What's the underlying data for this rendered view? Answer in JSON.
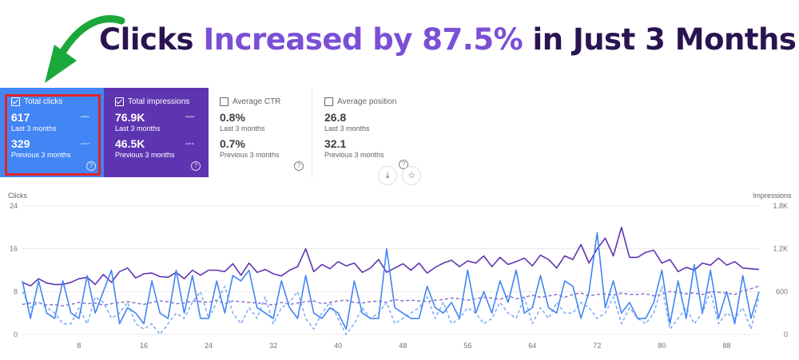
{
  "headline": {
    "part1": "Clicks ",
    "highlight": "Increased by 87.5%",
    "part2": " in Just 3 Months"
  },
  "colors": {
    "clicks": "#4285f4",
    "impressions": "#5e35b1",
    "highlight": "#7b4fd6",
    "arrow": "#1aa83a",
    "box": "#e02424"
  },
  "cards": [
    {
      "label": "Total clicks",
      "checked": true,
      "current": "617",
      "current_period": "Last 3 months",
      "previous": "329",
      "previous_period": "Previous 3 months"
    },
    {
      "label": "Total impressions",
      "checked": true,
      "current": "76.9K",
      "current_period": "Last 3 months",
      "previous": "46.5K",
      "previous_period": "Previous 3 months"
    },
    {
      "label": "Average CTR",
      "checked": false,
      "current": "0.8%",
      "current_period": "Last 3 months",
      "previous": "0.7%",
      "previous_period": "Previous 3 months"
    },
    {
      "label": "Average position",
      "checked": false,
      "current": "26.8",
      "current_period": "Last 3 months",
      "previous": "32.1",
      "previous_period": "Previous 3 months"
    }
  ],
  "icons": {
    "help": "?",
    "download": "download-icon",
    "star": "star-icon"
  },
  "chart_data": {
    "type": "line",
    "left_axis_label": "Clicks",
    "right_axis_label": "Impressions",
    "ylim_left": [
      0,
      24
    ],
    "ylim_right": [
      0,
      1800
    ],
    "left_ticks": [
      "24",
      "16",
      "8",
      "0"
    ],
    "right_ticks": [
      "1.8K",
      "1.2K",
      "600",
      "0"
    ],
    "x_ticks": [
      "8",
      "16",
      "24",
      "32",
      "40",
      "48",
      "56",
      "64",
      "72",
      "80",
      "88"
    ],
    "x_tick_values": [
      8,
      16,
      24,
      32,
      40,
      48,
      56,
      64,
      72,
      80,
      88
    ],
    "xlim": [
      1,
      92
    ],
    "grid": true,
    "series": [
      {
        "axis": "left",
        "style": "solid",
        "color": "#4285f4",
        "values": [
          10,
          3,
          10,
          4,
          3,
          10,
          4,
          3,
          11,
          4,
          8,
          12,
          2,
          5,
          4,
          2,
          10,
          4,
          3,
          12,
          4,
          11,
          3,
          3,
          10,
          4,
          11,
          10,
          12,
          5,
          4,
          3,
          10,
          5,
          3,
          11,
          4,
          3,
          5,
          4,
          1,
          10,
          4,
          3,
          3,
          16,
          5,
          4,
          3,
          3,
          9,
          5,
          4,
          6,
          3,
          12,
          4,
          8,
          4,
          10,
          6,
          12,
          4,
          5,
          11,
          5,
          4,
          10,
          9,
          3,
          8,
          19,
          5,
          10,
          4,
          6,
          3,
          3,
          6,
          12,
          2,
          10,
          3,
          13,
          4,
          12,
          3,
          8,
          2,
          11,
          3,
          8
        ]
      },
      {
        "axis": "left",
        "style": "dashed",
        "color": "#7baaf7",
        "values": [
          8,
          5,
          6,
          5,
          4,
          2,
          2,
          5,
          2,
          7,
          6,
          3,
          4,
          6,
          2,
          1,
          2,
          0,
          2,
          4,
          3,
          6,
          8,
          3,
          6,
          9,
          4,
          2,
          5,
          3,
          7,
          2,
          5,
          6,
          8,
          3,
          1,
          4,
          6,
          3,
          0,
          2,
          5,
          3,
          4,
          6,
          2,
          3,
          4,
          5,
          7,
          3,
          6,
          2,
          3,
          5,
          4,
          2,
          3,
          6,
          4,
          3,
          7,
          2,
          5,
          3,
          6,
          4,
          4,
          6,
          5,
          3,
          4,
          7,
          2,
          5,
          3,
          2,
          4,
          9,
          1,
          3,
          5,
          2,
          4,
          8,
          2,
          4,
          3,
          5,
          1,
          7
        ]
      },
      {
        "axis": "right",
        "style": "solid",
        "color": "#5e35b1",
        "values": [
          730,
          680,
          780,
          720,
          700,
          700,
          730,
          780,
          800,
          700,
          840,
          730,
          880,
          930,
          790,
          850,
          860,
          810,
          800,
          870,
          780,
          900,
          830,
          900,
          900,
          880,
          990,
          830,
          1000,
          870,
          910,
          850,
          820,
          900,
          950,
          1200,
          880,
          980,
          920,
          1020,
          960,
          1000,
          870,
          930,
          1050,
          870,
          930,
          990,
          900,
          1000,
          860,
          940,
          1000,
          1040,
          950,
          1030,
          1000,
          1100,
          950,
          1080,
          980,
          1020,
          1070,
          960,
          1110,
          1050,
          930,
          1100,
          1050,
          1260,
          1000,
          1200,
          1350,
          1100,
          1500,
          1080,
          1080,
          1150,
          1180,
          1000,
          1050,
          880,
          940,
          900,
          1000,
          970,
          1070,
          970,
          1020,
          930,
          920,
          910
        ]
      },
      {
        "axis": "right",
        "style": "dashed",
        "color": "#8e6fd1",
        "values": [
          420,
          440,
          450,
          410,
          420,
          400,
          420,
          450,
          430,
          440,
          410,
          430,
          450,
          460,
          440,
          420,
          450,
          470,
          460,
          430,
          440,
          470,
          460,
          450,
          480,
          430,
          470,
          460,
          450,
          440,
          430,
          410,
          450,
          420,
          440,
          460,
          470,
          430,
          450,
          470,
          480,
          450,
          440,
          460,
          470,
          450,
          490,
          470,
          480,
          470,
          460,
          480,
          490,
          510,
          500,
          480,
          500,
          520,
          510,
          490,
          540,
          500,
          520,
          550,
          520,
          540,
          560,
          520,
          560,
          580,
          540,
          560,
          570,
          550,
          580,
          560,
          560,
          570,
          540,
          560,
          600,
          590,
          570,
          580,
          560,
          600,
          590,
          580,
          560,
          610,
          640,
          680
        ]
      }
    ]
  }
}
